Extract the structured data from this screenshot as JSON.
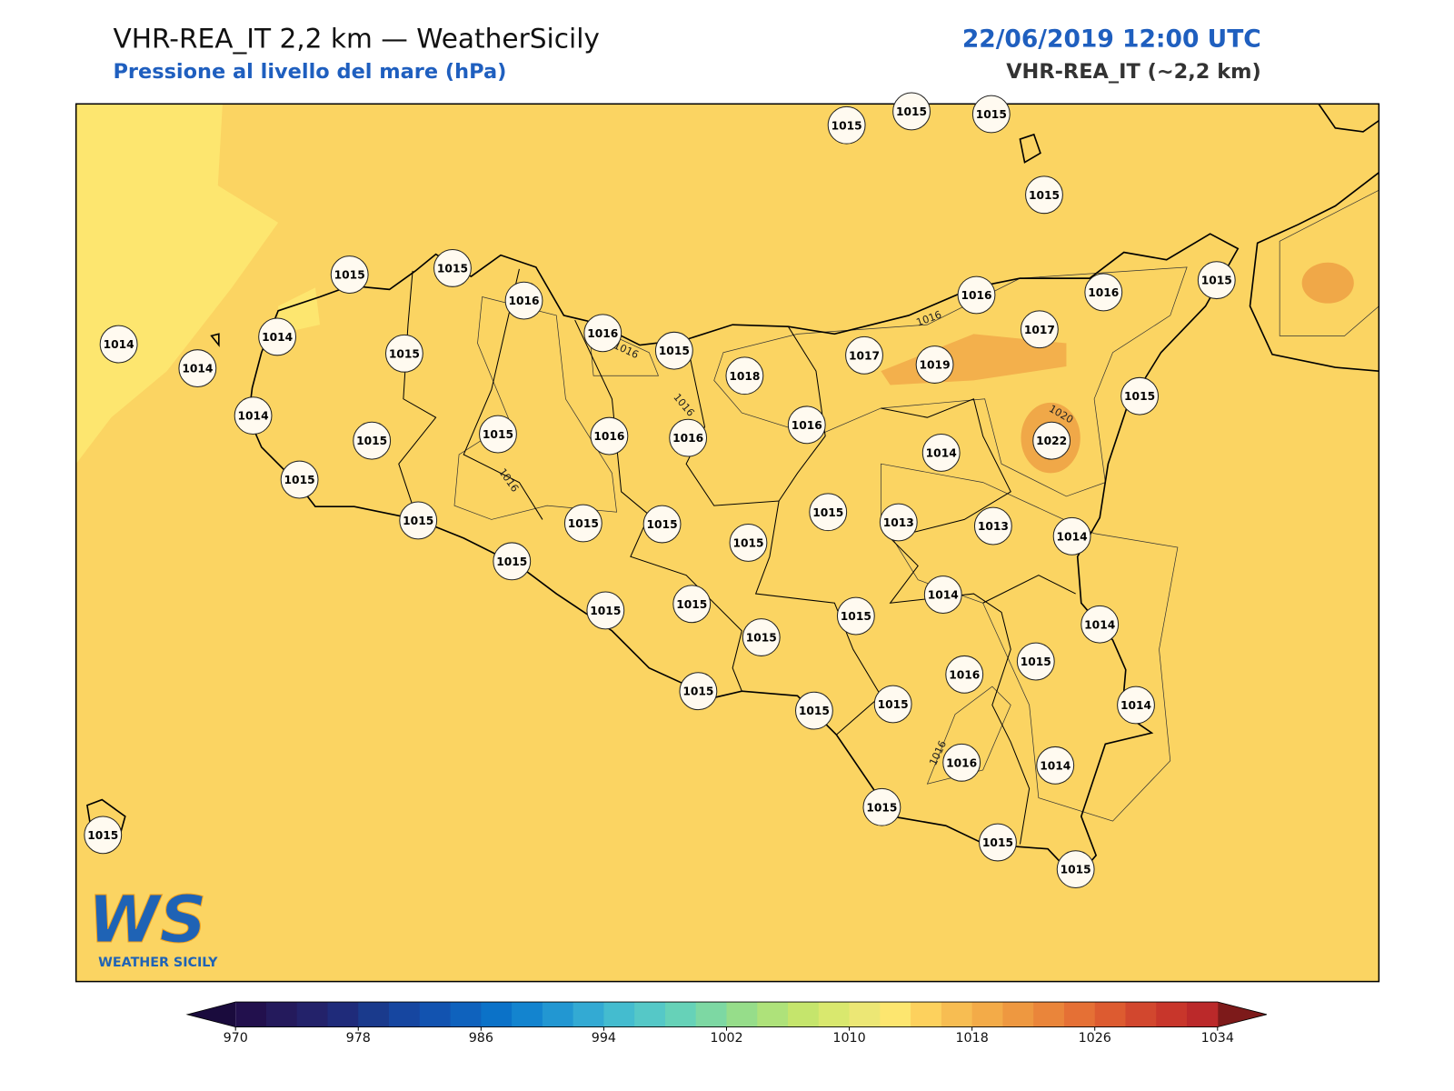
{
  "header": {
    "title": "VHR-REA_IT 2,2 km — WeatherSicily",
    "subtitle": "Pressione al livello del mare (hPa)",
    "datetime": "22/06/2019 12:00 UTC",
    "model": "VHR-REA_IT (~2,2 km)"
  },
  "stations": [
    {
      "value": 1015
    },
    {
      "value": 1015
    },
    {
      "value": 1015
    },
    {
      "value": 1015
    },
    {
      "value": 1015
    },
    {
      "value": 1015
    },
    {
      "value": 1016
    },
    {
      "value": 1016
    },
    {
      "value": 1015
    },
    {
      "value": 1014
    },
    {
      "value": 1014
    },
    {
      "value": 1014
    },
    {
      "value": 1015
    },
    {
      "value": 1014
    },
    {
      "value": 1015
    },
    {
      "value": 1015
    },
    {
      "value": 1016
    },
    {
      "value": 1016
    },
    {
      "value": 1018
    },
    {
      "value": 1017
    },
    {
      "value": 1019
    },
    {
      "value": 1016
    },
    {
      "value": 1017
    },
    {
      "value": 1016
    },
    {
      "value": 1015
    },
    {
      "value": 1015
    },
    {
      "value": 1016
    },
    {
      "value": 1014
    },
    {
      "value": 1022
    },
    {
      "value": 1015
    },
    {
      "value": 1015
    },
    {
      "value": 1015
    },
    {
      "value": 1015
    },
    {
      "value": 1015
    },
    {
      "value": 1015
    },
    {
      "value": 1013
    },
    {
      "value": 1013
    },
    {
      "value": 1014
    },
    {
      "value": 1015
    },
    {
      "value": 1015
    },
    {
      "value": 1015
    },
    {
      "value": 1014
    },
    {
      "value": 1015
    },
    {
      "value": 1014
    },
    {
      "value": 1015
    },
    {
      "value": 1016
    },
    {
      "value": 1015
    },
    {
      "value": 1015
    },
    {
      "value": 1015
    },
    {
      "value": 1015
    },
    {
      "value": 1014
    },
    {
      "value": 1016
    },
    {
      "value": 1014
    },
    {
      "value": 1015
    },
    {
      "value": 1015
    },
    {
      "value": 1015
    },
    {
      "value": 1015
    }
  ],
  "contour_labels": [
    1016,
    1016,
    1016,
    1016,
    1020,
    1016
  ],
  "colorbar": {
    "lim": [
      970,
      1034
    ],
    "ticks": [
      970,
      978,
      986,
      994,
      1002,
      1010,
      1018,
      1026,
      1034
    ],
    "colors": [
      "#22104d",
      "#241a5c",
      "#23226a",
      "#1f2b7a",
      "#1a3a8c",
      "#1646a0",
      "#1253b0",
      "#0f62bd",
      "#0b72c8",
      "#1384cf",
      "#2297d2",
      "#33aad3",
      "#44bccf",
      "#55c8c7",
      "#66d2b8",
      "#7dd8a3",
      "#96dd8a",
      "#aee27a",
      "#c5e56c",
      "#d9e86e",
      "#ece775",
      "#fde66f",
      "#fdd15d",
      "#f7bd52",
      "#f3ab48",
      "#ee9840",
      "#ea853a",
      "#e57035",
      "#dd5b30",
      "#d2472e",
      "#c8362b",
      "#bb292a"
    ],
    "under": "#1a0b3d",
    "over": "#7d1a1a"
  },
  "logo": {
    "initials": "WS",
    "name": "WEATHER SICILY"
  }
}
